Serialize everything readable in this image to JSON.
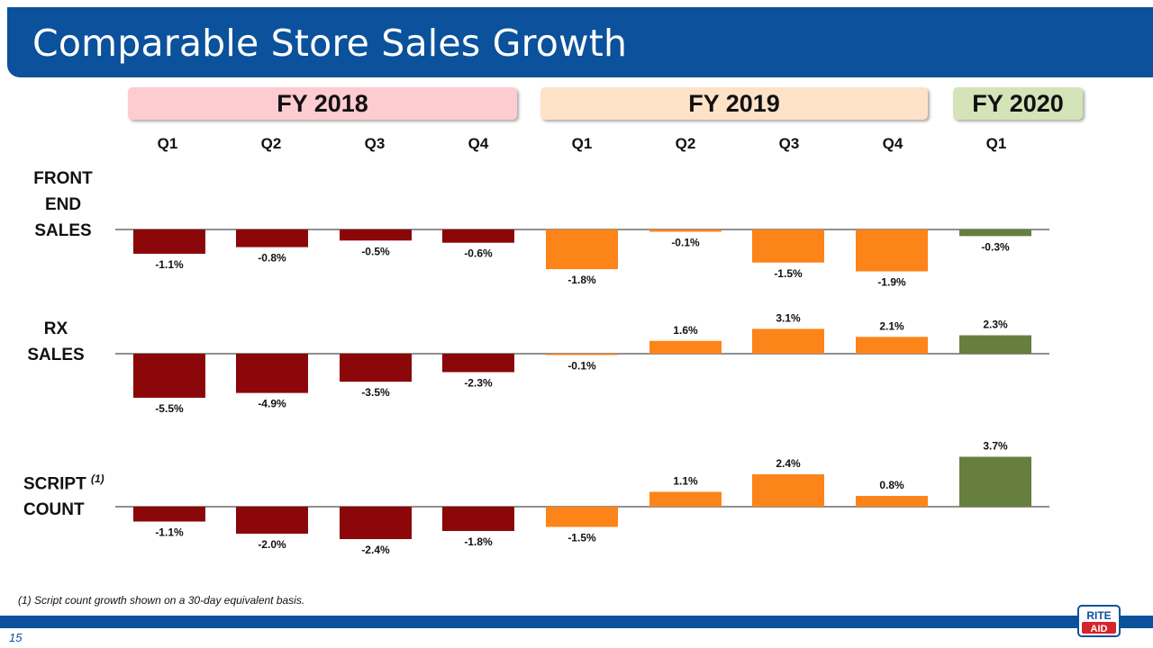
{
  "page_title": "Comparable Store Sales Growth",
  "fiscal_years": [
    {
      "label": "FY 2018",
      "color": "#fecbd1"
    },
    {
      "label": "FY 2019",
      "color": "#fde2c8"
    },
    {
      "label": "FY 2020",
      "color": "#d5e3b8"
    }
  ],
  "quarters": [
    "Q1",
    "Q2",
    "Q3",
    "Q4",
    "Q1",
    "Q2",
    "Q3",
    "Q4",
    "Q1"
  ],
  "row_labels": {
    "front_end": [
      "FRONT",
      "END",
      "SALES"
    ],
    "rx": [
      "RX",
      "SALES"
    ],
    "script_line1": "SCRIPT",
    "script_sup": "(1)",
    "script_line2": "COUNT"
  },
  "chart_data": {
    "type": "bar",
    "title": "Comparable Store Sales Growth",
    "categories": [
      "FY 2018 Q1",
      "FY 2018 Q2",
      "FY 2018 Q3",
      "FY 2018 Q4",
      "FY 2019 Q1",
      "FY 2019 Q2",
      "FY 2019 Q3",
      "FY 2019 Q4",
      "FY 2020 Q1"
    ],
    "unit": "%",
    "bar_colors": {
      "FY 2018": "#8b0709",
      "FY 2019": "#fd8419",
      "FY 2020": "#667f3e"
    },
    "series": [
      {
        "name": "Front End Sales",
        "values": [
          -1.1,
          -0.8,
          -0.5,
          -0.6,
          -1.8,
          -0.1,
          -1.5,
          -1.9,
          -0.3
        ],
        "labels": [
          "-1.1%",
          "-0.8%",
          "-0.5%",
          "-0.6%",
          "-1.8%",
          "-0.1%",
          "-1.5%",
          "-1.9%",
          "-0.3%"
        ]
      },
      {
        "name": "Rx Sales",
        "values": [
          -5.5,
          -4.9,
          -3.5,
          -2.3,
          -0.1,
          1.6,
          3.1,
          2.1,
          2.3
        ],
        "labels": [
          "-5.5%",
          "-4.9%",
          "-3.5%",
          "-2.3%",
          "-0.1%",
          "1.6%",
          "3.1%",
          "2.1%",
          "2.3%"
        ]
      },
      {
        "name": "Script Count",
        "values": [
          -1.1,
          -2.0,
          -2.4,
          -1.8,
          -1.5,
          1.1,
          2.4,
          0.8,
          3.7
        ],
        "labels": [
          "-1.1%",
          "-2.0%",
          "-2.4%",
          "-1.8%",
          "-1.5%",
          "1.1%",
          "2.4%",
          "0.8%",
          "3.7%"
        ]
      }
    ]
  },
  "footnote": "(1) Script count growth shown on a 30-day equivalent basis.",
  "slide_number": "15",
  "logo": {
    "line1": "RITE",
    "line2": "AID"
  },
  "colors": {
    "brand_blue": "#0b519c",
    "logo_red": "#d7242b"
  }
}
